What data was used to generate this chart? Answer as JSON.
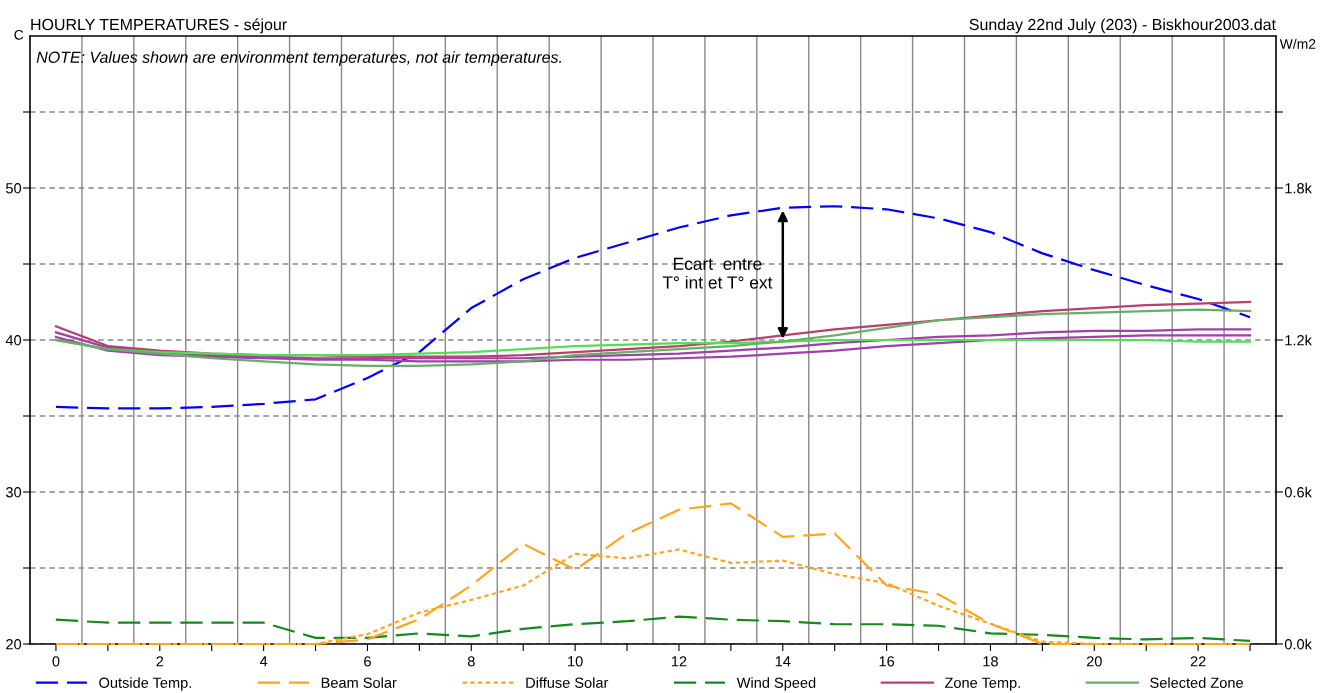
{
  "chart_data": {
    "type": "line",
    "title": "HOURLY TEMPERATURES - séjour",
    "subtitle": "Sunday 22nd July (203) - Biskhour2003.dat",
    "ylabel": "C",
    "y2label": "W/m2",
    "annotations": [
      "NOTE: Values shown are environment temperatures, not air temperatures.",
      {
        "text": "Ecart  entre\nT° int et T° ext",
        "x": 14,
        "y": 48.7
      }
    ],
    "x": [
      0,
      1,
      2,
      3,
      4,
      5,
      6,
      7,
      8,
      9,
      10,
      11,
      12,
      13,
      14,
      15,
      16,
      17,
      18,
      19,
      20,
      21,
      22,
      23
    ],
    "xlim": [
      -0.5,
      23.5
    ],
    "xticks": [
      0,
      {
        "value": 1,
        "label": null
      },
      2,
      {
        "value": 3,
        "label": null
      },
      4,
      {
        "value": 5,
        "label": null
      },
      6,
      {
        "value": 7,
        "label": null
      },
      8,
      {
        "value": 9,
        "label": null
      },
      10,
      {
        "value": 11,
        "label": null
      },
      12,
      {
        "value": 13,
        "label": null
      },
      14,
      {
        "value": 15,
        "label": null
      },
      16,
      {
        "value": 17,
        "label": null
      },
      18,
      {
        "value": 19,
        "label": null
      },
      20,
      {
        "value": 21,
        "label": null
      },
      22,
      {
        "value": 23,
        "label": null
      }
    ],
    "ylim": [
      20,
      60
    ],
    "yticks": [
      20,
      {
        "value": 25,
        "label": null
      },
      30,
      {
        "value": 35,
        "label": null
      },
      40,
      {
        "value": 45,
        "label": null
      },
      50,
      {
        "value": 55,
        "label": null
      }
    ],
    "y2lim": [
      0,
      2400
    ],
    "y2ticks": [
      {
        "value": 0,
        "label": "0.0k"
      },
      {
        "value": 300,
        "label": null
      },
      {
        "value": 600,
        "label": "0.6k"
      },
      {
        "value": 900,
        "label": null
      },
      {
        "value": 1200,
        "label": "1.2k"
      },
      {
        "value": 1500,
        "label": null
      },
      {
        "value": 1800,
        "label": "1.8k"
      },
      {
        "value": 2100,
        "label": null
      }
    ],
    "grid": true,
    "legend": "bottom",
    "series": [
      {
        "name": "Outside Temp.",
        "color": "#0000ff",
        "line_style": "dashed",
        "values": [
          35.6,
          35.5,
          35.5,
          35.6,
          35.8,
          36.1,
          37.5,
          39.2,
          42.1,
          44.0,
          45.4,
          46.4,
          47.4,
          48.2,
          48.7,
          48.8,
          48.6,
          48.0,
          47.1,
          45.7,
          44.6,
          43.6,
          42.7,
          41.5
        ]
      },
      {
        "name": "Beam Solar",
        "color": "#ffa520",
        "line_style": "dashed",
        "axis": "y2",
        "values": [
          0,
          0,
          0,
          0,
          0,
          0,
          18,
          98,
          231,
          395,
          293,
          436,
          530,
          555,
          423,
          436,
          231,
          196,
          80,
          0,
          0,
          0,
          0,
          0
        ]
      },
      {
        "name": "Diffuse Solar",
        "color": "#ffa520",
        "line_style": "dotted",
        "axis": "y2",
        "values": [
          0,
          0,
          0,
          0,
          0,
          0,
          39,
          124,
          174,
          231,
          356,
          338,
          373,
          320,
          329,
          276,
          240,
          151,
          80,
          9,
          0,
          0,
          0,
          0
        ]
      },
      {
        "name": "Wind Speed",
        "color": "#15881e",
        "line_style": "dashed",
        "values": [
          21.6,
          21.4,
          21.4,
          21.4,
          21.4,
          20.4,
          20.4,
          20.7,
          20.5,
          21.0,
          21.3,
          21.5,
          21.8,
          21.6,
          21.5,
          21.3,
          21.3,
          21.2,
          20.7,
          20.6,
          20.4,
          20.3,
          20.4,
          20.2
        ]
      },
      {
        "name": "Zone Temp.",
        "color": "#b8406e",
        "line_style": "solid",
        "values": [
          40.9,
          39.6,
          39.3,
          39.1,
          39.0,
          39.0,
          38.9,
          38.9,
          38.9,
          39.0,
          39.2,
          39.4,
          39.6,
          39.9,
          40.3,
          40.7,
          41.0,
          41.3,
          41.6,
          41.9,
          42.1,
          42.3,
          42.4,
          42.5
        ]
      },
      {
        "color": "#a040a8",
        "line_style": "solid",
        "values": [
          40.5,
          39.5,
          39.2,
          39.0,
          38.9,
          38.8,
          38.8,
          38.8,
          38.8,
          38.8,
          38.9,
          39.0,
          39.1,
          39.3,
          39.5,
          39.8,
          40.0,
          40.2,
          40.3,
          40.5,
          40.6,
          40.6,
          40.7,
          40.7
        ]
      },
      {
        "color": "#a040a8",
        "line_style": "solid",
        "values": [
          40.2,
          39.3,
          39.0,
          38.9,
          38.8,
          38.7,
          38.7,
          38.6,
          38.6,
          38.6,
          38.7,
          38.7,
          38.8,
          38.9,
          39.1,
          39.3,
          39.6,
          39.8,
          40.0,
          40.1,
          40.2,
          40.3,
          40.3,
          40.3
        ]
      },
      {
        "color": "#55dd55",
        "line_style": "solid",
        "values": [
          40.0,
          39.4,
          39.2,
          39.1,
          39.0,
          39.0,
          39.0,
          39.1,
          39.2,
          39.4,
          39.6,
          39.7,
          39.8,
          39.8,
          39.9,
          40.0,
          40.0,
          40.0,
          40.0,
          40.0,
          40.0,
          40.0,
          39.9,
          39.9
        ]
      },
      {
        "name": "Selected Zone",
        "color": "#66b066",
        "line_style": "solid",
        "values": [
          40.0,
          39.4,
          39.1,
          38.8,
          38.6,
          38.4,
          38.3,
          38.3,
          38.4,
          38.6,
          39.0,
          39.2,
          39.4,
          39.6,
          39.9,
          40.3,
          40.8,
          41.3,
          41.5,
          41.7,
          41.8,
          41.9,
          42.0,
          41.9
        ]
      }
    ]
  }
}
